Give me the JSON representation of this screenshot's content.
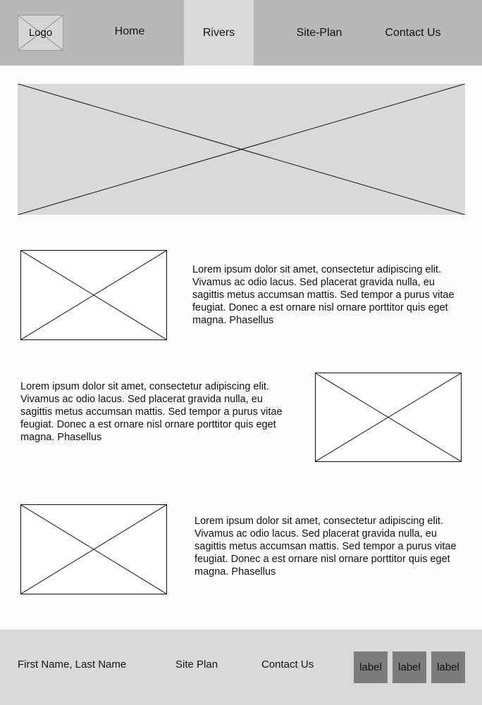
{
  "header": {
    "logo_label": "Logo",
    "nav": [
      {
        "label": "Home"
      },
      {
        "label": "Rivers"
      },
      {
        "label": "Site-Plan"
      },
      {
        "label": "Contact Us"
      }
    ]
  },
  "sections": [
    {
      "text": "Lorem ipsum dolor sit amet, consectetur adipiscing elit. Vivamus ac odio lacus. Sed placerat gravida nulla, eu sagittis metus accumsan mattis. Sed tempor a purus vitae feugiat. Donec a est ornare nisl ornare porttitor quis eget magna. Phasellus"
    },
    {
      "text": "Lorem ipsum dolor sit amet, consectetur adipiscing elit. Vivamus ac odio lacus. Sed placerat gravida nulla, eu sagittis metus accumsan mattis. Sed tempor a purus vitae feugiat. Donec a est ornare nisl ornare porttitor quis eget magna. Phasellus"
    },
    {
      "text": "Lorem ipsum dolor sit amet, consectetur adipiscing elit. Vivamus ac odio lacus. Sed placerat gravida nulla, eu sagittis metus accumsan mattis. Sed tempor a purus vitae feugiat. Donec a est ornare nisl ornare porttitor quis eget magna. Phasellus"
    }
  ],
  "footer": {
    "name": "First Name, Last Name",
    "site_plan": "Site Plan",
    "contact": "Contact Us",
    "buttons": [
      {
        "label": "label"
      },
      {
        "label": "label"
      },
      {
        "label": "label"
      }
    ]
  },
  "colors": {
    "header_bg": "#b8b8b8",
    "active_tab_bg": "#d9d9d9",
    "placeholder_bg": "#d9d9d9",
    "footer_bg": "#d9d9d9",
    "footer_button_bg": "#7c7c7c"
  }
}
